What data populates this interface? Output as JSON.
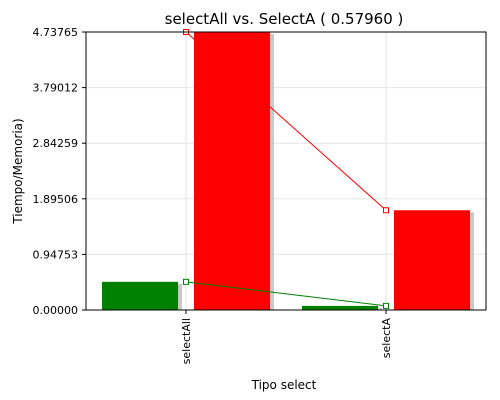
{
  "chart_data": {
    "type": "bar",
    "title": "selectAll vs. SelectA ( 0.57960 )",
    "xlabel": "Tipo select",
    "ylabel": "Tiempo/Memoria)",
    "ylim": [
      0,
      4.73765
    ],
    "yticks": [
      "0.00000",
      "0.94753",
      "1.89506",
      "2.84259",
      "3.79012",
      "4.73765"
    ],
    "categories": [
      "selectAll",
      "selectA"
    ],
    "grid": true,
    "legend": "none",
    "series": [
      {
        "color": "#008000",
        "values": [
          0.48,
          0.07
        ]
      },
      {
        "color": "#ff0000",
        "values": [
          4.73765,
          1.7
        ]
      }
    ]
  }
}
